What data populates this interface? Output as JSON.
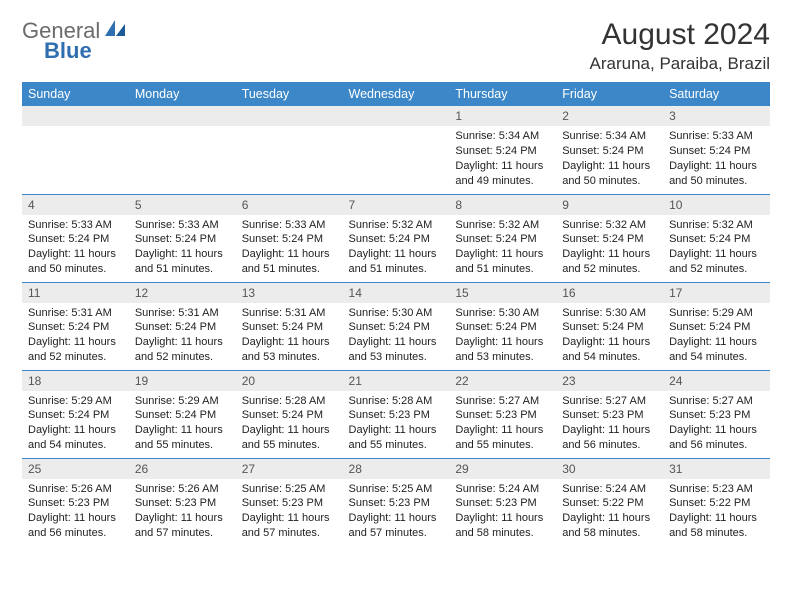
{
  "logo": {
    "gray": "General",
    "blue": "Blue"
  },
  "title": "August 2024",
  "location": "Araruna, Paraiba, Brazil",
  "header_bg": "#3b87c8",
  "daynum_bg": "#ececec",
  "border_color": "#3b87c8",
  "weekdays": [
    "Sunday",
    "Monday",
    "Tuesday",
    "Wednesday",
    "Thursday",
    "Friday",
    "Saturday"
  ],
  "weeks": [
    [
      {
        "n": "",
        "lines": []
      },
      {
        "n": "",
        "lines": []
      },
      {
        "n": "",
        "lines": []
      },
      {
        "n": "",
        "lines": []
      },
      {
        "n": "1",
        "lines": [
          "Sunrise: 5:34 AM",
          "Sunset: 5:24 PM",
          "Daylight: 11 hours and 49 minutes."
        ]
      },
      {
        "n": "2",
        "lines": [
          "Sunrise: 5:34 AM",
          "Sunset: 5:24 PM",
          "Daylight: 11 hours and 50 minutes."
        ]
      },
      {
        "n": "3",
        "lines": [
          "Sunrise: 5:33 AM",
          "Sunset: 5:24 PM",
          "Daylight: 11 hours and 50 minutes."
        ]
      }
    ],
    [
      {
        "n": "4",
        "lines": [
          "Sunrise: 5:33 AM",
          "Sunset: 5:24 PM",
          "Daylight: 11 hours and 50 minutes."
        ]
      },
      {
        "n": "5",
        "lines": [
          "Sunrise: 5:33 AM",
          "Sunset: 5:24 PM",
          "Daylight: 11 hours and 51 minutes."
        ]
      },
      {
        "n": "6",
        "lines": [
          "Sunrise: 5:33 AM",
          "Sunset: 5:24 PM",
          "Daylight: 11 hours and 51 minutes."
        ]
      },
      {
        "n": "7",
        "lines": [
          "Sunrise: 5:32 AM",
          "Sunset: 5:24 PM",
          "Daylight: 11 hours and 51 minutes."
        ]
      },
      {
        "n": "8",
        "lines": [
          "Sunrise: 5:32 AM",
          "Sunset: 5:24 PM",
          "Daylight: 11 hours and 51 minutes."
        ]
      },
      {
        "n": "9",
        "lines": [
          "Sunrise: 5:32 AM",
          "Sunset: 5:24 PM",
          "Daylight: 11 hours and 52 minutes."
        ]
      },
      {
        "n": "10",
        "lines": [
          "Sunrise: 5:32 AM",
          "Sunset: 5:24 PM",
          "Daylight: 11 hours and 52 minutes."
        ]
      }
    ],
    [
      {
        "n": "11",
        "lines": [
          "Sunrise: 5:31 AM",
          "Sunset: 5:24 PM",
          "Daylight: 11 hours and 52 minutes."
        ]
      },
      {
        "n": "12",
        "lines": [
          "Sunrise: 5:31 AM",
          "Sunset: 5:24 PM",
          "Daylight: 11 hours and 52 minutes."
        ]
      },
      {
        "n": "13",
        "lines": [
          "Sunrise: 5:31 AM",
          "Sunset: 5:24 PM",
          "Daylight: 11 hours and 53 minutes."
        ]
      },
      {
        "n": "14",
        "lines": [
          "Sunrise: 5:30 AM",
          "Sunset: 5:24 PM",
          "Daylight: 11 hours and 53 minutes."
        ]
      },
      {
        "n": "15",
        "lines": [
          "Sunrise: 5:30 AM",
          "Sunset: 5:24 PM",
          "Daylight: 11 hours and 53 minutes."
        ]
      },
      {
        "n": "16",
        "lines": [
          "Sunrise: 5:30 AM",
          "Sunset: 5:24 PM",
          "Daylight: 11 hours and 54 minutes."
        ]
      },
      {
        "n": "17",
        "lines": [
          "Sunrise: 5:29 AM",
          "Sunset: 5:24 PM",
          "Daylight: 11 hours and 54 minutes."
        ]
      }
    ],
    [
      {
        "n": "18",
        "lines": [
          "Sunrise: 5:29 AM",
          "Sunset: 5:24 PM",
          "Daylight: 11 hours and 54 minutes."
        ]
      },
      {
        "n": "19",
        "lines": [
          "Sunrise: 5:29 AM",
          "Sunset: 5:24 PM",
          "Daylight: 11 hours and 55 minutes."
        ]
      },
      {
        "n": "20",
        "lines": [
          "Sunrise: 5:28 AM",
          "Sunset: 5:24 PM",
          "Daylight: 11 hours and 55 minutes."
        ]
      },
      {
        "n": "21",
        "lines": [
          "Sunrise: 5:28 AM",
          "Sunset: 5:23 PM",
          "Daylight: 11 hours and 55 minutes."
        ]
      },
      {
        "n": "22",
        "lines": [
          "Sunrise: 5:27 AM",
          "Sunset: 5:23 PM",
          "Daylight: 11 hours and 55 minutes."
        ]
      },
      {
        "n": "23",
        "lines": [
          "Sunrise: 5:27 AM",
          "Sunset: 5:23 PM",
          "Daylight: 11 hours and 56 minutes."
        ]
      },
      {
        "n": "24",
        "lines": [
          "Sunrise: 5:27 AM",
          "Sunset: 5:23 PM",
          "Daylight: 11 hours and 56 minutes."
        ]
      }
    ],
    [
      {
        "n": "25",
        "lines": [
          "Sunrise: 5:26 AM",
          "Sunset: 5:23 PM",
          "Daylight: 11 hours and 56 minutes."
        ]
      },
      {
        "n": "26",
        "lines": [
          "Sunrise: 5:26 AM",
          "Sunset: 5:23 PM",
          "Daylight: 11 hours and 57 minutes."
        ]
      },
      {
        "n": "27",
        "lines": [
          "Sunrise: 5:25 AM",
          "Sunset: 5:23 PM",
          "Daylight: 11 hours and 57 minutes."
        ]
      },
      {
        "n": "28",
        "lines": [
          "Sunrise: 5:25 AM",
          "Sunset: 5:23 PM",
          "Daylight: 11 hours and 57 minutes."
        ]
      },
      {
        "n": "29",
        "lines": [
          "Sunrise: 5:24 AM",
          "Sunset: 5:23 PM",
          "Daylight: 11 hours and 58 minutes."
        ]
      },
      {
        "n": "30",
        "lines": [
          "Sunrise: 5:24 AM",
          "Sunset: 5:22 PM",
          "Daylight: 11 hours and 58 minutes."
        ]
      },
      {
        "n": "31",
        "lines": [
          "Sunrise: 5:23 AM",
          "Sunset: 5:22 PM",
          "Daylight: 11 hours and 58 minutes."
        ]
      }
    ]
  ]
}
